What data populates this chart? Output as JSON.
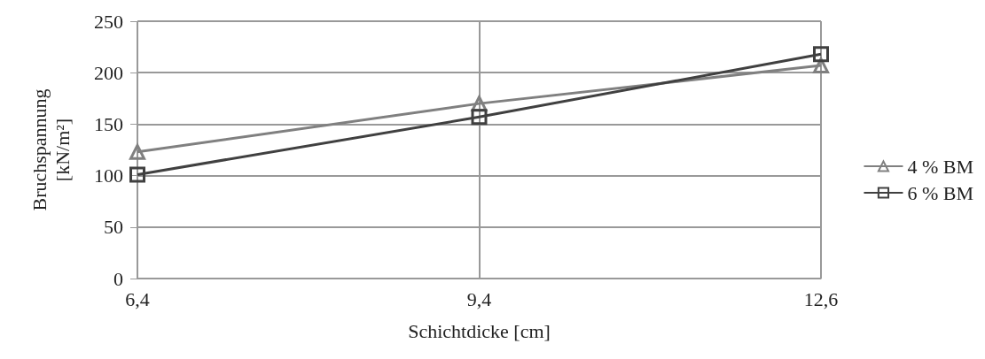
{
  "chart_data": {
    "type": "line",
    "xlabel": "Schichtdicke [cm]",
    "ylabel": "Bruchspannung [kN/m²]",
    "categories": [
      "6,4",
      "9,4",
      "12,6"
    ],
    "series": [
      {
        "name": "4 % BM",
        "color": "#808080",
        "marker": "triangle",
        "values": [
          123,
          170,
          207
        ]
      },
      {
        "name": "6 % BM",
        "color": "#404040",
        "marker": "square",
        "values": [
          101,
          157,
          218
        ]
      }
    ],
    "ylim": [
      0,
      250
    ],
    "yticks": [
      0,
      50,
      100,
      150,
      200,
      250
    ],
    "grid": true,
    "legend": "right"
  }
}
